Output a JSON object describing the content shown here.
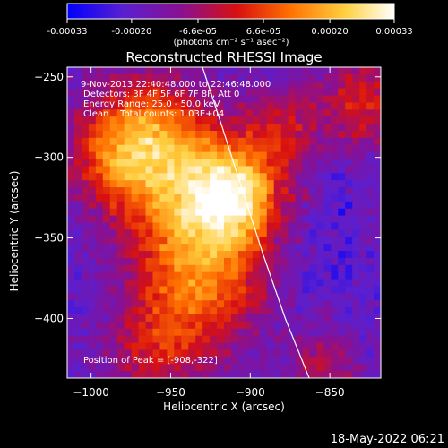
{
  "colorbar": {
    "ticks": [
      "-0.00033",
      "-0.00020",
      "-6.6e-05",
      "6.6e-05",
      "0.00020",
      "0.00033"
    ],
    "tick_values": [
      -0.00033,
      -0.0002,
      -6.6e-05,
      6.6e-05,
      0.0002,
      0.00033
    ],
    "range": [
      -0.00033,
      0.00033
    ],
    "units": "(photons cm⁻² s⁻¹ asec⁻²)",
    "colormap": [
      "#0000ff",
      "#5a1fd0",
      "#8a1090",
      "#d81010",
      "#ff7000",
      "#ffd040",
      "#ffffff"
    ]
  },
  "info": {
    "time_range": "9-Nov-2013 22:40:48.000 to 22:46:48.000",
    "detectors": "Detectors: 3F 4F 5F 6F 7F 8F, Att 0",
    "energy": "Energy Range: 25.0 - 50.0 keV",
    "method": "Clean    Total counts: 1.03E+04",
    "peak": "Position of Peak = [-908,-322]"
  },
  "footer": {
    "timestamp": "18-May-2022 06:21"
  },
  "chart_data": {
    "type": "heatmap",
    "title": "Reconstructed RHESSI Image",
    "xlabel": "Heliocentric X (arcsec)",
    "ylabel": "Heliocentric Y (arcsec)",
    "xlim": [
      -1015,
      -818
    ],
    "ylim": [
      -437,
      -244
    ],
    "xticks": [
      -1000,
      -950,
      -900,
      -850
    ],
    "yticks": [
      -250,
      -300,
      -350,
      -400
    ],
    "xtick_labels": [
      "−1000",
      "−950",
      "−900",
      "−850"
    ],
    "ytick_labels": [
      "−250",
      "−300",
      "−350",
      "−400"
    ],
    "peak": {
      "x": -908,
      "y": -322
    },
    "limb_curve": [
      [
        -930,
        -244
      ],
      [
        -918,
        -280
      ],
      [
        -905,
        -320
      ],
      [
        -892,
        -360
      ],
      [
        -878,
        -400
      ],
      [
        -863,
        -437
      ]
    ],
    "grid": false
  }
}
